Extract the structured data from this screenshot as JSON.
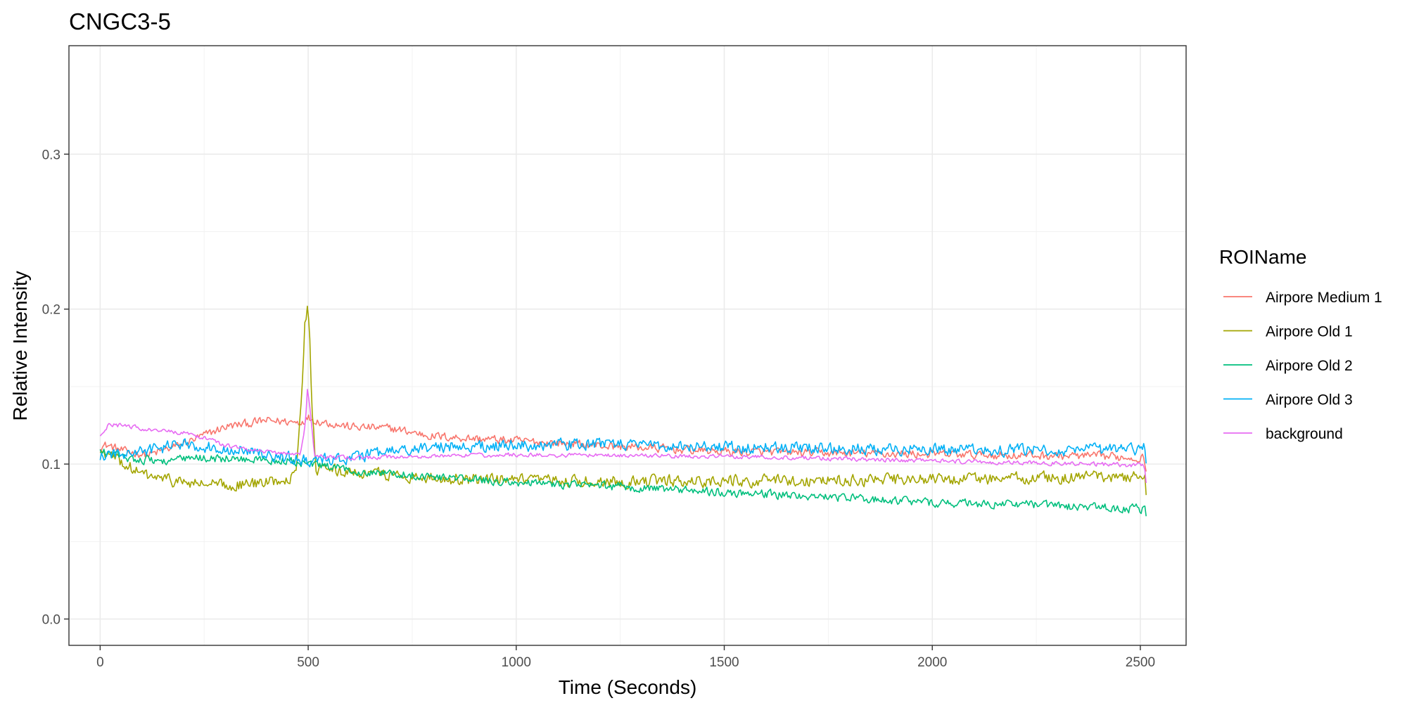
{
  "chart_data": {
    "type": "line",
    "title": "CNGC3-5",
    "xlabel": "Time (Seconds)",
    "ylabel": "Relative Intensity",
    "xlim": [
      -75,
      2610
    ],
    "ylim": [
      -0.017,
      0.37
    ],
    "x_ticks": [
      0,
      500,
      1000,
      1500,
      2000,
      2500
    ],
    "x_tick_labels": [
      "0",
      "500",
      "1000",
      "1500",
      "2000",
      "2500"
    ],
    "y_ticks": [
      0.0,
      0.1,
      0.2,
      0.3
    ],
    "y_tick_labels": [
      "0.0",
      "0.1",
      "0.2",
      "0.3"
    ],
    "grid": true,
    "legend": {
      "title": "ROIName",
      "position": "right"
    },
    "series": [
      {
        "name": "Airpore Medium 1",
        "color": "#F8766D",
        "noise": 0.0025,
        "x": [
          0,
          20,
          60,
          120,
          200,
          300,
          400,
          480,
          500,
          520,
          600,
          700,
          800,
          1000,
          1200,
          1500,
          1800,
          2100,
          2400,
          2510,
          2515
        ],
        "y": [
          0.112,
          0.112,
          0.108,
          0.106,
          0.113,
          0.124,
          0.128,
          0.127,
          0.13,
          0.128,
          0.124,
          0.123,
          0.118,
          0.115,
          0.112,
          0.108,
          0.107,
          0.106,
          0.105,
          0.104,
          0.093
        ]
      },
      {
        "name": "Airpore Old 1",
        "color": "#A3A500",
        "noise": 0.0035,
        "x": [
          0,
          40,
          100,
          200,
          300,
          400,
          470,
          485,
          492,
          498,
          503,
          510,
          520,
          600,
          800,
          1000,
          1500,
          2000,
          2500,
          2512,
          2515
        ],
        "y": [
          0.108,
          0.103,
          0.093,
          0.088,
          0.086,
          0.088,
          0.093,
          0.15,
          0.19,
          0.2,
          0.19,
          0.13,
          0.096,
          0.095,
          0.091,
          0.089,
          0.089,
          0.09,
          0.092,
          0.09,
          0.075
        ]
      },
      {
        "name": "Airpore Old 2",
        "color": "#00BF7D",
        "noise": 0.0025,
        "x": [
          0,
          60,
          150,
          250,
          350,
          450,
          500,
          600,
          800,
          1000,
          1200,
          1500,
          1800,
          2000,
          2200,
          2400,
          2500,
          2512,
          2515
        ],
        "y": [
          0.108,
          0.104,
          0.102,
          0.104,
          0.103,
          0.102,
          0.1,
          0.096,
          0.092,
          0.088,
          0.086,
          0.082,
          0.078,
          0.075,
          0.074,
          0.072,
          0.071,
          0.071,
          0.064
        ]
      },
      {
        "name": "Airpore Old 3",
        "color": "#00B0F6",
        "noise": 0.0035,
        "x": [
          0,
          50,
          100,
          200,
          300,
          400,
          450,
          500,
          550,
          600,
          700,
          800,
          1000,
          1200,
          1500,
          1800,
          2100,
          2400,
          2510,
          2515
        ],
        "y": [
          0.105,
          0.106,
          0.108,
          0.113,
          0.11,
          0.106,
          0.104,
          0.102,
          0.103,
          0.104,
          0.108,
          0.111,
          0.112,
          0.113,
          0.111,
          0.11,
          0.109,
          0.109,
          0.11,
          0.098
        ]
      },
      {
        "name": "background",
        "color": "#E76BF3",
        "noise": 0.0012,
        "x": [
          0,
          20,
          60,
          120,
          200,
          250,
          300,
          400,
          480,
          493,
          498,
          505,
          515,
          600,
          800,
          1000,
          1500,
          2000,
          2400,
          2510,
          2515
        ],
        "y": [
          0.118,
          0.125,
          0.125,
          0.122,
          0.12,
          0.117,
          0.112,
          0.108,
          0.106,
          0.125,
          0.148,
          0.135,
          0.105,
          0.104,
          0.105,
          0.106,
          0.105,
          0.102,
          0.1,
          0.099,
          0.085
        ]
      }
    ]
  }
}
